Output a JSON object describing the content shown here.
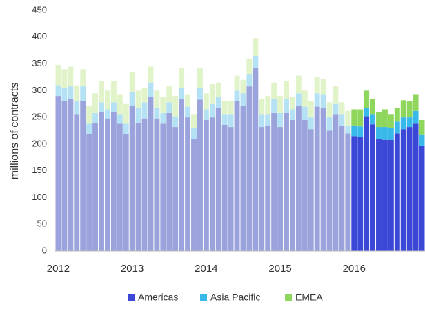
{
  "chart_data": {
    "type": "stacked-bar",
    "y_label": "millions of contracts",
    "categories": [
      "2012",
      null,
      null,
      null,
      null,
      null,
      null,
      null,
      null,
      null,
      null,
      null,
      "2013",
      null,
      null,
      null,
      null,
      null,
      null,
      null,
      null,
      null,
      null,
      null,
      "2014",
      null,
      null,
      null,
      null,
      null,
      null,
      null,
      null,
      null,
      null,
      null,
      "2015",
      null,
      null,
      null,
      null,
      null,
      null,
      null,
      null,
      null,
      null,
      null,
      "2016",
      null,
      null,
      null,
      null,
      null,
      null,
      null,
      null,
      null,
      null,
      null
    ],
    "highlight_from": "2016",
    "series": [
      {
        "name": "Americas",
        "color": "#3b47d6",
        "faded_color": "#9ba3dc",
        "values": [
          290,
          280,
          285,
          255,
          280,
          218,
          240,
          260,
          248,
          260,
          238,
          218,
          272,
          240,
          248,
          288,
          248,
          238,
          258,
          232,
          285,
          250,
          210,
          283,
          245,
          250,
          268,
          236,
          232,
          280,
          272,
          308,
          342,
          232,
          235,
          258,
          232,
          258,
          245,
          272,
          245,
          228,
          270,
          268,
          225,
          255,
          235,
          220,
          215,
          213,
          252,
          237,
          210,
          208,
          208,
          220,
          228,
          232,
          238,
          197
        ]
      },
      {
        "name": "Asia Pacific",
        "color": "#38b9ea",
        "faded_color": "#b4e2f4",
        "values": [
          20,
          25,
          23,
          25,
          28,
          20,
          18,
          18,
          17,
          18,
          17,
          20,
          26,
          28,
          30,
          27,
          20,
          20,
          20,
          20,
          20,
          20,
          20,
          22,
          20,
          25,
          20,
          19,
          23,
          20,
          23,
          22,
          23,
          23,
          20,
          27,
          26,
          27,
          20,
          23,
          25,
          22,
          25,
          24,
          25,
          20,
          20,
          15,
          20,
          20,
          16,
          18,
          22,
          24,
          22,
          22,
          22,
          18,
          24,
          20
        ]
      },
      {
        "name": "EMEA",
        "color": "#8fd65c",
        "faded_color": "#e1f3c9",
        "values": [
          38,
          35,
          37,
          30,
          32,
          34,
          37,
          40,
          35,
          40,
          37,
          37,
          37,
          32,
          27,
          30,
          32,
          30,
          30,
          38,
          37,
          22,
          25,
          37,
          30,
          37,
          27,
          25,
          25,
          28,
          25,
          30,
          33,
          30,
          35,
          30,
          32,
          33,
          23,
          33,
          30,
          30,
          30,
          30,
          28,
          33,
          23,
          27,
          30,
          32,
          32,
          30,
          28,
          33,
          25,
          26,
          32,
          30,
          30,
          28
        ]
      }
    ],
    "ylim": [
      0,
      450
    ],
    "yticks": [
      0,
      50,
      100,
      150,
      200,
      250,
      300,
      350,
      400,
      450
    ],
    "grid": false
  }
}
